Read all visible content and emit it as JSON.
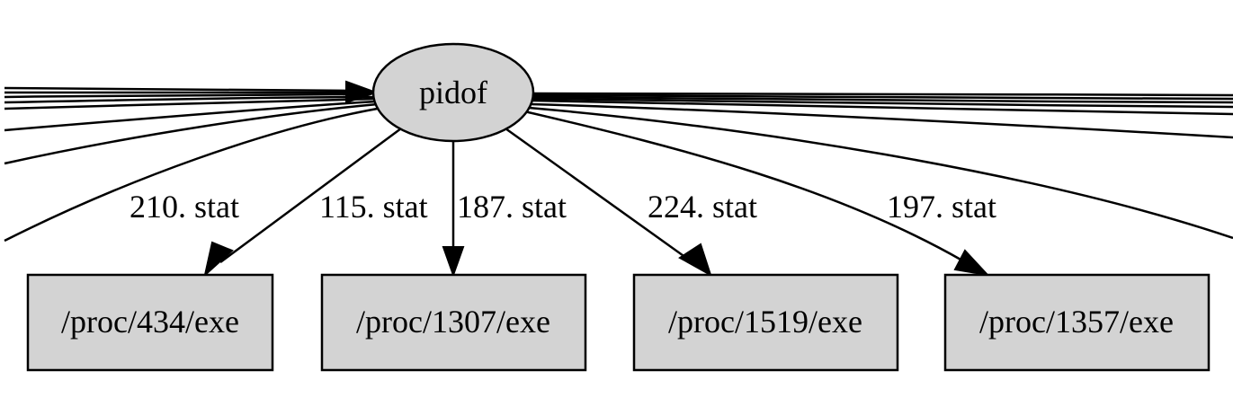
{
  "graph": {
    "center_node": {
      "label": "pidof",
      "fill": "#d3d3d3"
    },
    "nodes": [
      {
        "label": "/proc/434/exe"
      },
      {
        "label": "/proc/1307/exe"
      },
      {
        "label": "/proc/1519/exe"
      },
      {
        "label": "/proc/1357/exe"
      }
    ],
    "edges": [
      {
        "label": "115. stat",
        "target": "/proc/434/exe"
      },
      {
        "label": "187. stat",
        "target": "/proc/1307/exe"
      },
      {
        "label": "224. stat",
        "target": "/proc/1519/exe"
      },
      {
        "label": "197. stat",
        "target": "/proc/1357/exe"
      }
    ],
    "offscreen_edge_labels": [
      "210. stat"
    ]
  }
}
